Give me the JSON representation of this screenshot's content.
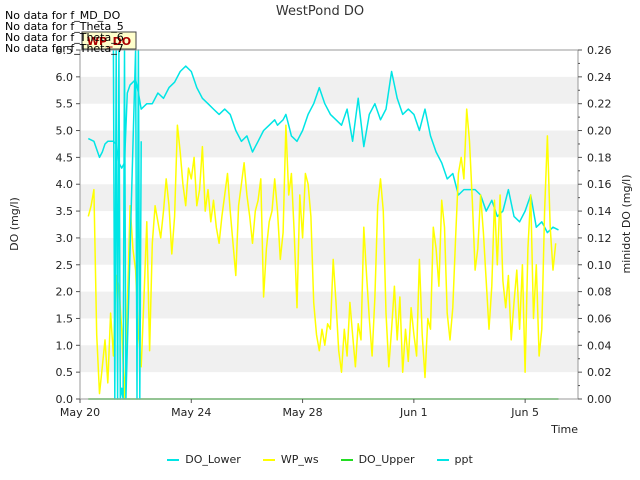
{
  "chart_data": {
    "type": "line",
    "title": "WestPond DO",
    "xlabel": "Time",
    "ylabel": "DO (mg/l)",
    "y2label": "minidot DO (mg/l)",
    "ylim": [
      0.0,
      6.5
    ],
    "y2lim": [
      0.0,
      0.26
    ],
    "xlim": [
      0,
      17.9
    ],
    "x_ticks": [
      {
        "value": 0,
        "label": "May 20"
      },
      {
        "value": 4,
        "label": "May 24"
      },
      {
        "value": 8,
        "label": "May 28"
      },
      {
        "value": 12,
        "label": "Jun 1"
      },
      {
        "value": 16,
        "label": "Jun 5"
      }
    ],
    "y_ticks": [
      "0.0",
      "0.5",
      "1.0",
      "1.5",
      "2.0",
      "2.5",
      "3.0",
      "3.5",
      "4.0",
      "4.5",
      "5.0",
      "5.5",
      "6.0",
      "6.5"
    ],
    "y2_ticks": [
      "0.00",
      "0.02",
      "0.04",
      "0.06",
      "0.08",
      "0.10",
      "0.12",
      "0.14",
      "0.16",
      "0.18",
      "0.20",
      "0.22",
      "0.24",
      "0.26"
    ],
    "no_data_messages": [
      "No data for f_MD_DO",
      "No data for f_Theta_5",
      "No data for f_Theta_6",
      "No data for f_Theta_7"
    ],
    "annotation": "WP_DO",
    "series": [
      {
        "name": "DO_Lower",
        "color": "#00e5e5",
        "x": [
          0.3,
          0.5,
          0.7,
          0.8,
          0.9,
          1.0,
          1.1,
          1.2,
          1.3,
          1.4,
          1.5,
          1.6,
          1.7,
          1.8,
          1.9,
          2.0,
          2.1,
          2.2,
          2.4,
          2.6,
          2.8,
          3.0,
          3.2,
          3.4,
          3.6,
          3.8,
          4.0,
          4.2,
          4.4,
          4.6,
          4.8,
          5.0,
          5.2,
          5.4,
          5.6,
          5.8,
          6.0,
          6.2,
          6.4,
          6.6,
          6.8,
          7.0,
          7.1,
          7.2,
          7.3,
          7.4,
          7.5,
          7.6,
          7.8,
          8.0,
          8.2,
          8.4,
          8.6,
          8.8,
          9.0,
          9.2,
          9.4,
          9.6,
          9.8,
          10.0,
          10.2,
          10.4,
          10.6,
          10.8,
          11.0,
          11.2,
          11.4,
          11.6,
          11.8,
          12.0,
          12.2,
          12.4,
          12.6,
          12.8,
          13.0,
          13.2,
          13.4,
          13.6,
          13.8,
          14.0,
          14.2,
          14.4,
          14.6,
          14.8,
          15.0,
          15.2,
          15.4,
          15.6,
          15.8,
          16.0,
          16.2,
          16.4,
          16.6,
          16.8,
          17.0,
          17.2
        ],
        "y": [
          4.85,
          4.8,
          4.5,
          4.6,
          4.75,
          4.8,
          4.8,
          4.8,
          4.75,
          4.4,
          4.3,
          4.4,
          5.7,
          5.85,
          5.9,
          5.95,
          5.7,
          5.4,
          5.5,
          5.5,
          5.7,
          5.6,
          5.8,
          5.9,
          6.1,
          6.2,
          6.1,
          5.8,
          5.6,
          5.5,
          5.4,
          5.3,
          5.4,
          5.3,
          5.0,
          4.8,
          4.9,
          4.6,
          4.8,
          5.0,
          5.1,
          5.2,
          5.1,
          5.15,
          5.2,
          5.3,
          5.1,
          4.9,
          4.8,
          5.0,
          5.3,
          5.5,
          5.8,
          5.5,
          5.3,
          5.2,
          5.1,
          5.4,
          4.8,
          5.6,
          4.7,
          5.3,
          5.5,
          5.2,
          5.4,
          6.1,
          5.6,
          5.3,
          5.4,
          5.3,
          5.0,
          5.4,
          4.9,
          4.6,
          4.4,
          4.1,
          4.2,
          3.8,
          3.9,
          3.9,
          3.9,
          3.8,
          3.5,
          3.7,
          3.4,
          3.5,
          3.9,
          3.4,
          3.3,
          3.5,
          3.8,
          3.2,
          3.3,
          3.1,
          3.2,
          3.15
        ]
      },
      {
        "name": "WP_ws",
        "color": "#ffff00",
        "x": [
          0.3,
          0.4,
          0.5,
          0.6,
          0.7,
          0.8,
          0.9,
          1.0,
          1.1,
          1.2,
          1.3,
          1.4,
          1.5,
          1.6,
          1.7,
          1.8,
          1.9,
          2.0,
          2.1,
          2.2,
          2.3,
          2.4,
          2.5,
          2.6,
          2.7,
          2.8,
          2.9,
          3.0,
          3.1,
          3.2,
          3.3,
          3.4,
          3.5,
          3.6,
          3.7,
          3.8,
          3.9,
          4.0,
          4.1,
          4.2,
          4.3,
          4.4,
          4.5,
          4.6,
          4.7,
          4.8,
          4.9,
          5.0,
          5.1,
          5.2,
          5.3,
          5.4,
          5.5,
          5.6,
          5.7,
          5.8,
          5.9,
          6.0,
          6.1,
          6.2,
          6.3,
          6.4,
          6.5,
          6.6,
          6.7,
          6.8,
          6.9,
          7.0,
          7.1,
          7.2,
          7.3,
          7.4,
          7.5,
          7.6,
          7.7,
          7.8,
          7.9,
          8.0,
          8.1,
          8.2,
          8.3,
          8.4,
          8.5,
          8.6,
          8.7,
          8.8,
          8.9,
          9.0,
          9.1,
          9.2,
          9.3,
          9.4,
          9.5,
          9.6,
          9.7,
          9.8,
          9.9,
          10.0,
          10.1,
          10.2,
          10.3,
          10.4,
          10.5,
          10.6,
          10.7,
          10.8,
          10.9,
          11.0,
          11.1,
          11.2,
          11.3,
          11.4,
          11.5,
          11.6,
          11.7,
          11.8,
          11.9,
          12.0,
          12.1,
          12.2,
          12.3,
          12.4,
          12.5,
          12.6,
          12.7,
          12.8,
          12.9,
          13.0,
          13.1,
          13.2,
          13.3,
          13.4,
          13.5,
          13.6,
          13.7,
          13.8,
          13.9,
          14.0,
          14.1,
          14.2,
          14.3,
          14.4,
          14.5,
          14.6,
          14.7,
          14.8,
          14.9,
          15.0,
          15.1,
          15.2,
          15.3,
          15.4,
          15.5,
          15.6,
          15.7,
          15.8,
          15.9,
          16.0,
          16.1,
          16.2,
          16.3,
          16.4,
          16.5,
          16.6,
          16.7,
          16.8,
          16.9,
          17.0,
          17.1
        ],
        "y": [
          3.4,
          3.6,
          3.9,
          1.2,
          0.1,
          0.6,
          1.1,
          0.3,
          1.6,
          0.8,
          2.3,
          2.1,
          1.3,
          0.0,
          1.7,
          3.6,
          2.8,
          2.4,
          1.2,
          0.6,
          1.9,
          3.3,
          0.9,
          2.9,
          3.6,
          3.3,
          3.0,
          3.5,
          4.1,
          3.6,
          2.7,
          3.4,
          5.1,
          4.6,
          4.0,
          3.6,
          4.3,
          4.1,
          4.5,
          3.6,
          3.9,
          4.7,
          3.5,
          3.9,
          3.3,
          3.7,
          3.2,
          2.9,
          3.4,
          3.8,
          4.2,
          3.5,
          2.9,
          2.3,
          3.6,
          4.0,
          4.4,
          3.8,
          3.4,
          2.9,
          3.5,
          3.7,
          4.1,
          1.9,
          2.8,
          3.3,
          3.5,
          4.1,
          3.5,
          2.6,
          3.1,
          5.1,
          3.8,
          4.2,
          3.1,
          1.7,
          3.8,
          3.0,
          4.2,
          4.0,
          3.4,
          1.8,
          1.2,
          0.9,
          1.3,
          1.0,
          1.4,
          1.3,
          2.6,
          1.8,
          0.9,
          0.5,
          1.3,
          0.8,
          1.8,
          1.2,
          0.6,
          1.4,
          1.1,
          3.2,
          2.3,
          1.5,
          0.8,
          1.9,
          3.6,
          4.1,
          3.5,
          1.6,
          0.6,
          1.3,
          2.1,
          1.1,
          1.9,
          0.5,
          1.3,
          0.7,
          1.7,
          1.2,
          0.8,
          2.6,
          1.2,
          0.4,
          1.5,
          1.3,
          3.2,
          2.8,
          2.1,
          3.7,
          3.2,
          1.6,
          1.1,
          1.7,
          3.0,
          4.2,
          4.5,
          4.1,
          5.4,
          4.8,
          3.7,
          2.4,
          2.8,
          3.8,
          3.1,
          2.2,
          1.3,
          2.1,
          3.7,
          2.5,
          3.8,
          2.2,
          1.7,
          2.3,
          1.1,
          1.8,
          2.4,
          1.3,
          2.5,
          0.5,
          2.8,
          3.8,
          1.5,
          2.5,
          0.8,
          1.3,
          3.5,
          4.9,
          3.2,
          2.4,
          2.9
        ]
      },
      {
        "name": "DO_Upper",
        "color": "#22dd22",
        "x": [
          0.3,
          17.2
        ],
        "y": [
          0.0,
          0.0
        ]
      },
      {
        "name": "ppt",
        "color": "#00e5e5",
        "x": [
          1.2,
          1.25,
          1.3,
          1.35,
          1.4,
          1.45,
          1.5,
          1.55,
          1.6,
          1.65,
          2.0,
          2.05,
          2.1,
          2.15,
          2.2
        ],
        "y": [
          6.5,
          0.0,
          6.5,
          0.0,
          6.5,
          0.0,
          0.2,
          0.0,
          6.5,
          0.0,
          6.5,
          0.0,
          6.5,
          0.0,
          4.8
        ]
      }
    ]
  }
}
